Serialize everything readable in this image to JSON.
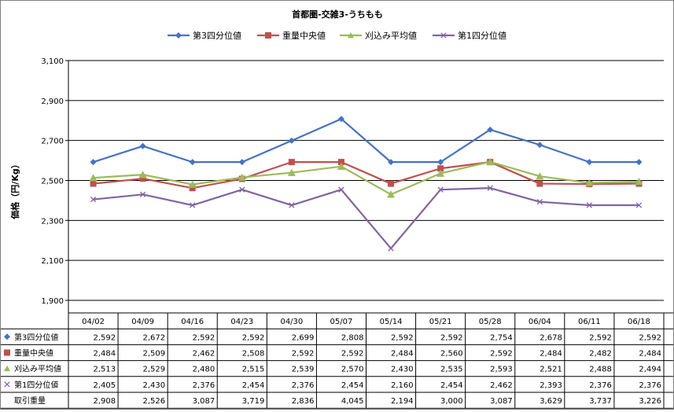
{
  "chart_data": {
    "type": "line",
    "title": "首都圏-交雑3-うちもも",
    "ylabel": "価格（円/Kg）",
    "ylim": [
      1900,
      3100
    ],
    "yticks": [
      1900,
      2100,
      2300,
      2500,
      2700,
      2900,
      3100
    ],
    "ytick_labels": [
      "1,900",
      "2,100",
      "2,300",
      "2,500",
      "2,700",
      "2,900",
      "3,100"
    ],
    "grid": true,
    "legend_position": "top",
    "categories": [
      "04/02",
      "04/09",
      "04/16",
      "04/23",
      "04/30",
      "05/07",
      "05/14",
      "05/21",
      "05/28",
      "06/04",
      "06/11",
      "06/18"
    ],
    "series": [
      {
        "name": "第3四分位値",
        "color": "#4472C4",
        "marker": "diamond",
        "values": [
          2592,
          2672,
          2592,
          2592,
          2699,
          2808,
          2592,
          2592,
          2754,
          2678,
          2592,
          2592
        ]
      },
      {
        "name": "重量中央値",
        "color": "#C0504D",
        "marker": "square",
        "values": [
          2484,
          2509,
          2462,
          2508,
          2592,
          2592,
          2484,
          2560,
          2592,
          2484,
          2482,
          2484
        ]
      },
      {
        "name": "刈込み平均値",
        "color": "#9BBB59",
        "marker": "triangle",
        "values": [
          2513,
          2529,
          2480,
          2515,
          2539,
          2570,
          2430,
          2535,
          2593,
          2521,
          2488,
          2494
        ]
      },
      {
        "name": "第1四分位値",
        "color": "#8064A2",
        "marker": "x",
        "values": [
          2405,
          2430,
          2376,
          2454,
          2376,
          2454,
          2160,
          2454,
          2462,
          2393,
          2376,
          2376
        ]
      }
    ],
    "table": {
      "rows": [
        {
          "label": "第3四分位値",
          "marker": "diamond",
          "color": "#4472C4",
          "cells": [
            "2,592",
            "2,672",
            "2,592",
            "2,592",
            "2,699",
            "2,808",
            "2,592",
            "2,592",
            "2,754",
            "2,678",
            "2,592",
            "2,592"
          ]
        },
        {
          "label": "重量中央値",
          "marker": "square",
          "color": "#C0504D",
          "cells": [
            "2,484",
            "2,509",
            "2,462",
            "2,508",
            "2,592",
            "2,592",
            "2,484",
            "2,560",
            "2,592",
            "2,484",
            "2,482",
            "2,484"
          ]
        },
        {
          "label": "刈込み平均値",
          "marker": "triangle",
          "color": "#9BBB59",
          "cells": [
            "2,513",
            "2,529",
            "2,480",
            "2,515",
            "2,539",
            "2,570",
            "2,430",
            "2,535",
            "2,593",
            "2,521",
            "2,488",
            "2,494"
          ]
        },
        {
          "label": "第1四分位値",
          "marker": "x",
          "color": "#8064A2",
          "cells": [
            "2,405",
            "2,430",
            "2,376",
            "2,454",
            "2,376",
            "2,454",
            "2,160",
            "2,454",
            "2,462",
            "2,393",
            "2,376",
            "2,376"
          ]
        },
        {
          "label": "取引重量",
          "marker": "",
          "color": "",
          "cells": [
            "2,908",
            "2,526",
            "3,087",
            "3,719",
            "2,836",
            "4,045",
            "2,194",
            "3,000",
            "3,087",
            "3,629",
            "3,737",
            "3,226"
          ]
        }
      ]
    }
  }
}
